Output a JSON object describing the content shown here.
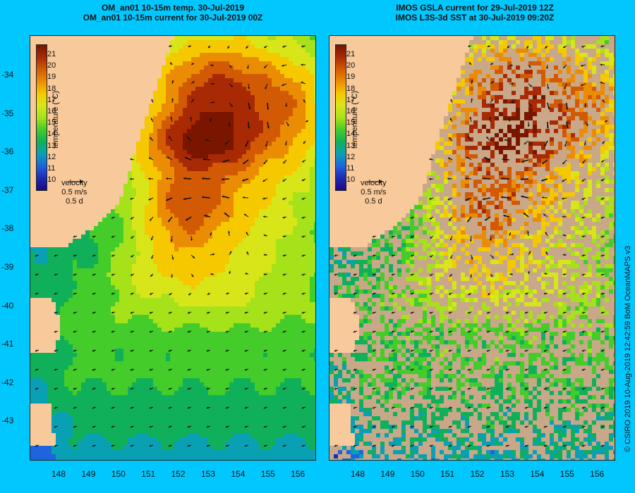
{
  "left_panel": {
    "title_line1": "OM_an01 10-15m temp. 30-Jul-2019",
    "title_line2": "OM_an01 10-15m current for 30-Jul-2019 00Z"
  },
  "right_panel": {
    "title_line1": "IMOS GSLA current for 29-Jul-2019 12Z",
    "title_line2": "IMOS L3S-3d SST at 30-Jul-2019 09:20Z"
  },
  "latitude_labels": [
    "-34",
    "-35",
    "-36",
    "-37",
    "-38",
    "-39",
    "-40",
    "-41",
    "-42",
    "-43"
  ],
  "longitude_labels": [
    "148",
    "149",
    "150",
    "151",
    "152",
    "153",
    "154",
    "155",
    "156"
  ],
  "colorbar": {
    "labels": [
      "21",
      "20",
      "19",
      "18",
      "17",
      "16",
      "15",
      "14",
      "13",
      "12",
      "11",
      "10"
    ],
    "title": "temperature (°C)",
    "colors": [
      "#7a1500",
      "#a82a05",
      "#d25a05",
      "#eb8c05",
      "#f5c800",
      "#d8e619",
      "#a6e21a",
      "#44cc2a",
      "#10b05a",
      "#0aa0b4",
      "#1e64dc",
      "#1e2ab4",
      "#1a0a82"
    ]
  },
  "velocity_key": {
    "label": "velocity",
    "speed": "0.5 m/s",
    "duration": "0.5 d"
  },
  "credit": "© CSIRO 2019   10-Aug-2019 12:42:59 BoM OceanMAPS v3",
  "colors": {
    "background": "#00c8ff",
    "land": "#f8c99a",
    "no_data": "#c8a888"
  }
}
